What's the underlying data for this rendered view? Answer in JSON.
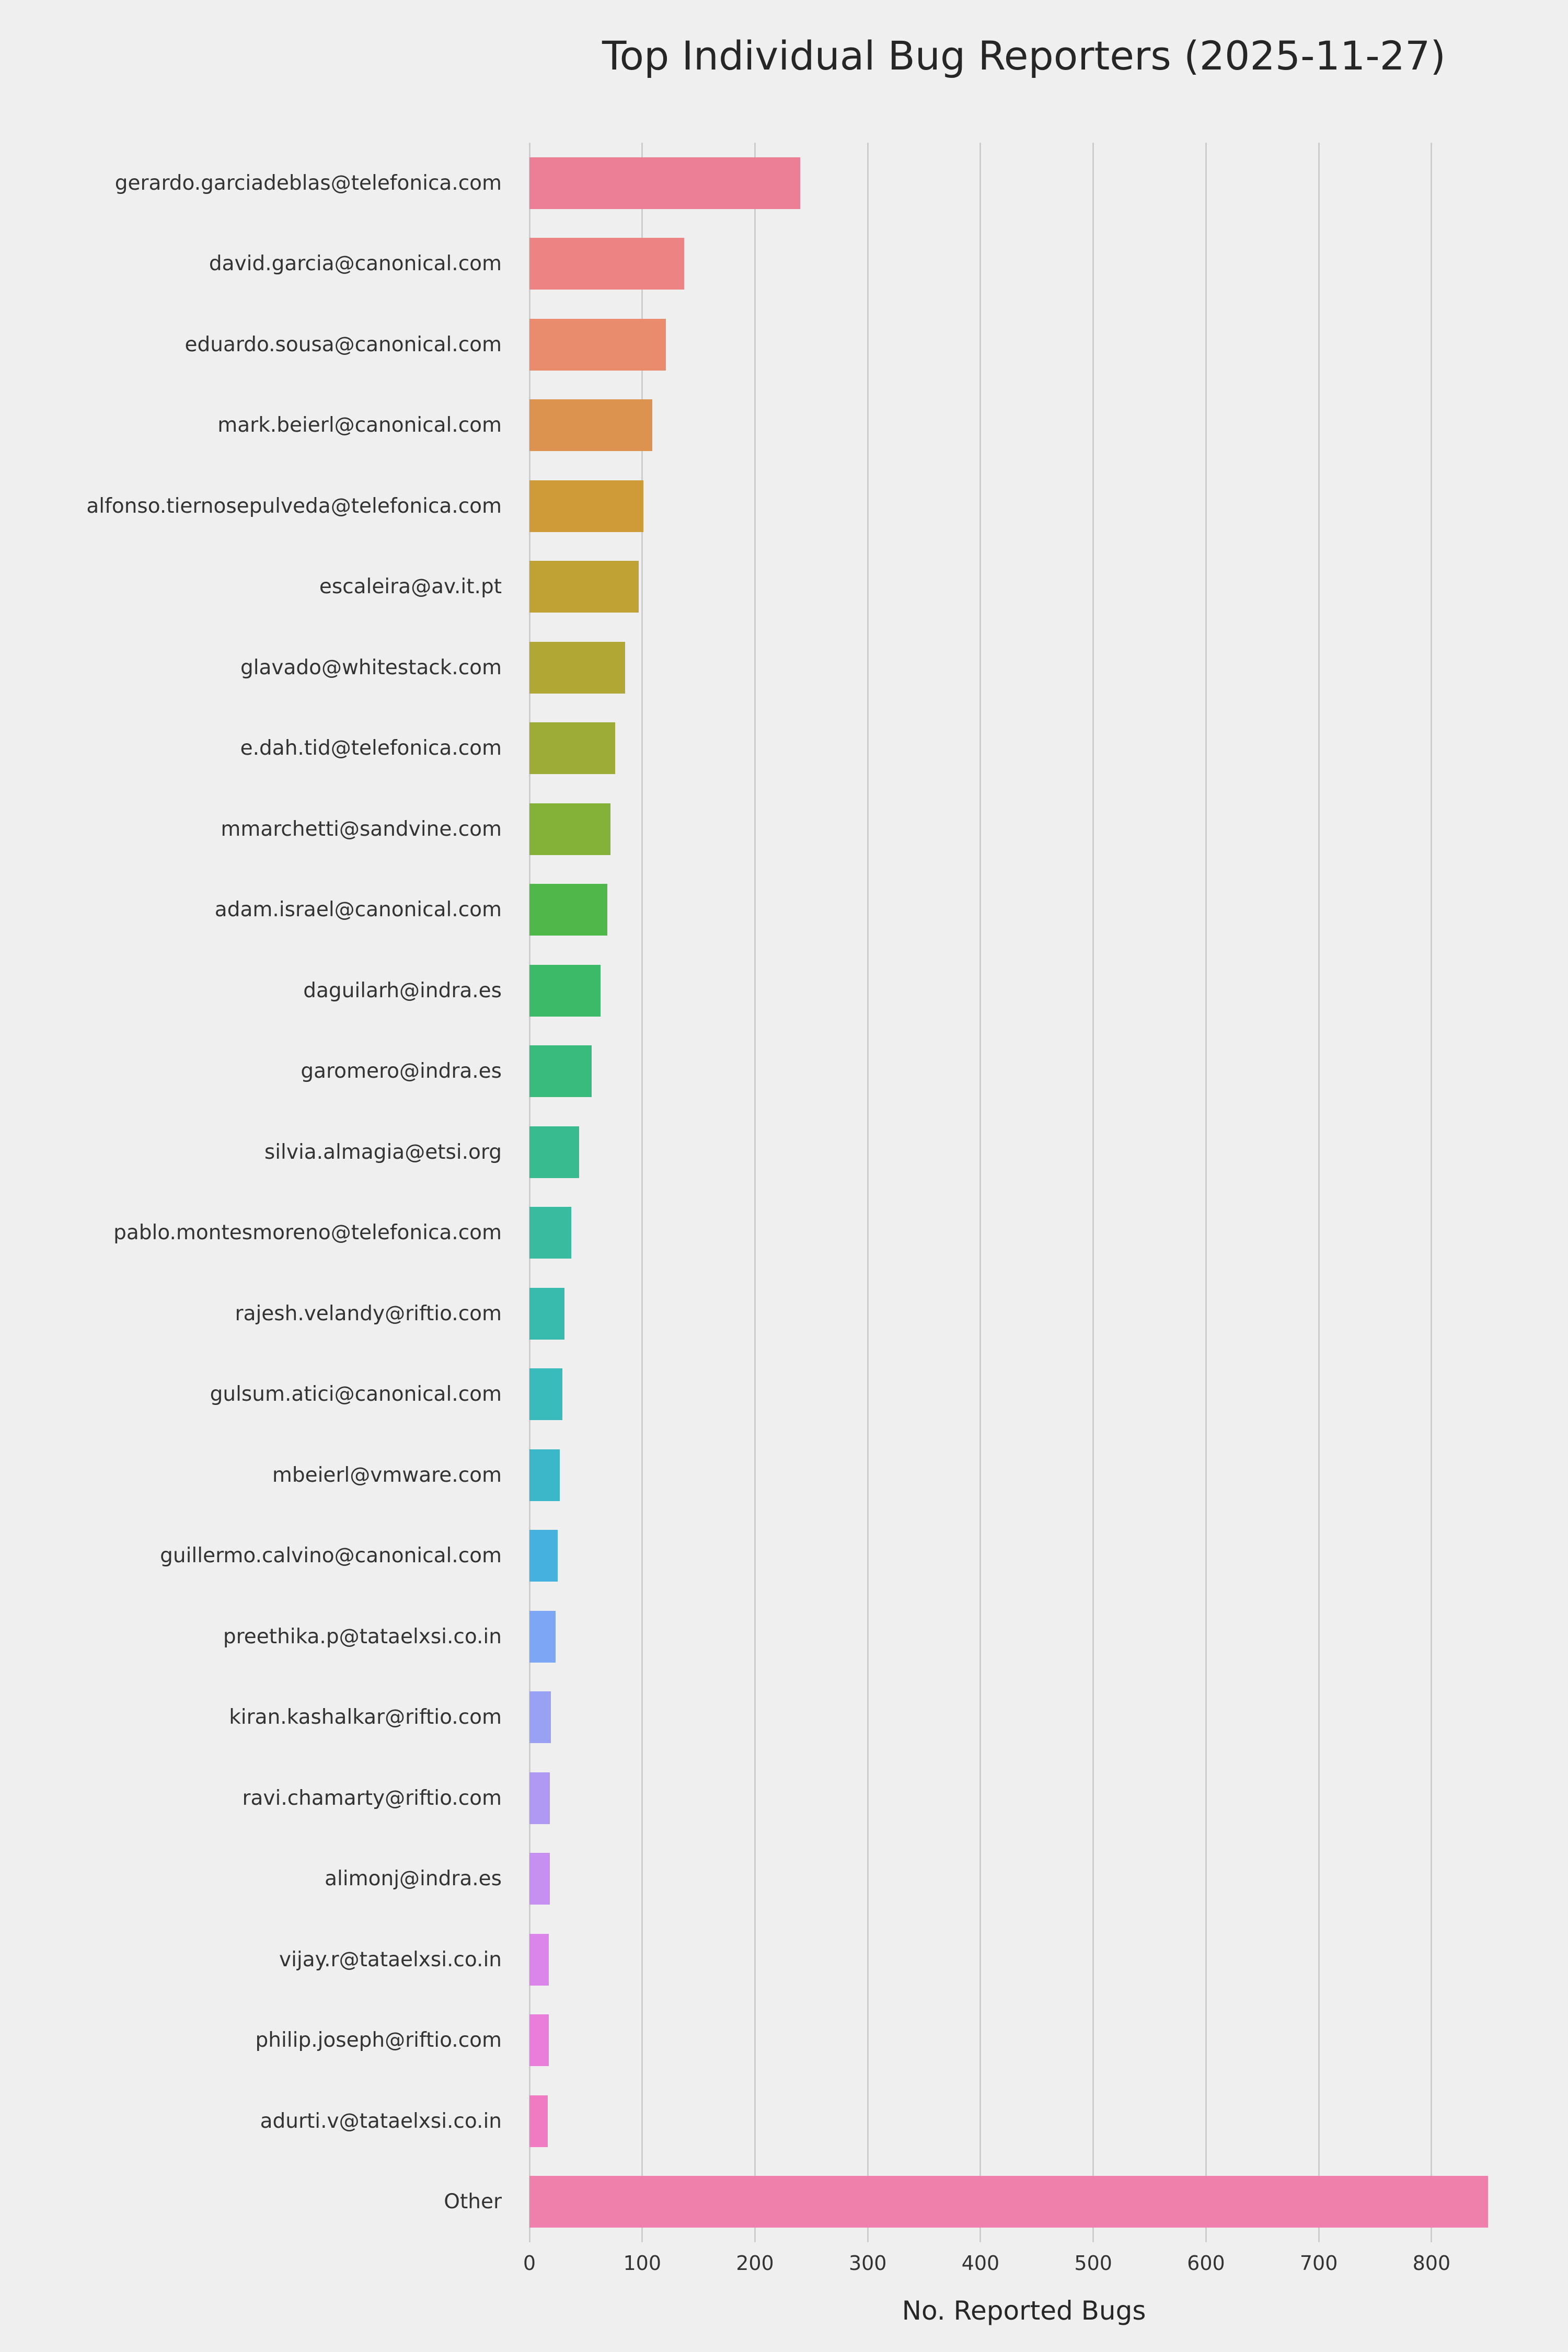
{
  "title": "Top Individual Bug Reporters (2025-11-27)",
  "xlabel": "No. Reported Bugs",
  "chart_data": {
    "type": "bar",
    "orientation": "horizontal",
    "title": "Top Individual Bug Reporters (2025-11-27)",
    "xlabel": "No. Reported Bugs",
    "ylabel": "",
    "xlim": [
      0,
      877
    ],
    "xticks": [
      0,
      100,
      200,
      300,
      400,
      500,
      600,
      700,
      800
    ],
    "grid": true,
    "legend": "none",
    "categories": [
      "gerardo.garciadeblas@telefonica.com",
      "david.garcia@canonical.com",
      "eduardo.sousa@canonical.com",
      "mark.beierl@canonical.com",
      "alfonso.tiernosepulveda@telefonica.com",
      "escaleira@av.it.pt",
      "glavado@whitestack.com",
      "e.dah.tid@telefonica.com",
      "mmarchetti@sandvine.com",
      "adam.israel@canonical.com",
      "daguilarh@indra.es",
      "garomero@indra.es",
      "silvia.almagia@etsi.org",
      "pablo.montesmoreno@telefonica.com",
      "rajesh.velandy@riftio.com",
      "gulsum.atici@canonical.com",
      "mbeierl@vmware.com",
      "guillermo.calvino@canonical.com",
      "preethika.p@tataelxsi.co.in",
      "kiran.kashalkar@riftio.com",
      "ravi.chamarty@riftio.com",
      "alimonj@indra.es",
      "vijay.r@tataelxsi.co.in",
      "philip.joseph@riftio.com",
      "adurti.v@tataelxsi.co.in",
      "Other"
    ],
    "values": [
      240,
      137,
      121,
      109,
      101,
      97,
      85,
      76,
      72,
      69,
      63,
      55,
      44,
      37,
      31,
      29,
      27,
      25,
      23,
      19,
      18,
      18,
      17,
      17,
      16,
      850
    ],
    "bar_colors": [
      "#ec7f95",
      "#ee8383",
      "#e98b6d",
      "#dd9350",
      "#cf9b39",
      "#c0a234",
      "#b0a735",
      "#9dac36",
      "#84b138",
      "#50b84b",
      "#3cba67",
      "#3abb7e",
      "#39bb90",
      "#38bb9f",
      "#38bbad",
      "#39babb",
      "#3cb7ca",
      "#45b1de",
      "#7da7f4",
      "#98a1f3",
      "#af99f3",
      "#c690f1",
      "#db85ea",
      "#ea7dd9",
      "#f07bc2",
      "#ef7fab"
    ],
    "background_color": "#efefef",
    "gridline_color": "#cdcdcd"
  }
}
